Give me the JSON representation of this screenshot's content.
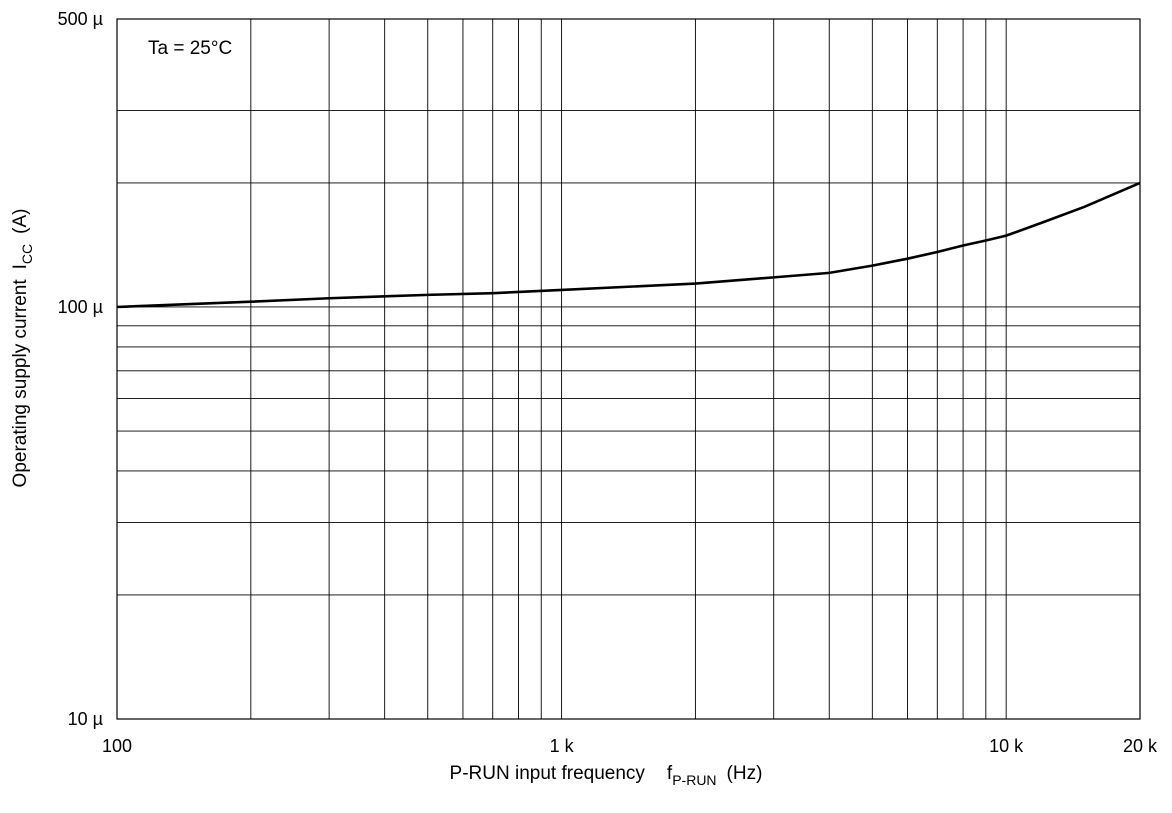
{
  "chart_data": {
    "type": "line",
    "title": "",
    "annotation": "Ta = 25°C",
    "xlabel": {
      "main": "P-RUN input frequency",
      "symbol": "f",
      "subscript": "P-RUN",
      "unit": "(Hz)"
    },
    "ylabel": {
      "main": "Operating supply current",
      "symbol": "I",
      "subscript": "CC",
      "unit": "(A)"
    },
    "x_scale": "log",
    "y_scale": "log",
    "xlim": [
      100,
      20000
    ],
    "ylim": [
      1e-05,
      0.0005
    ],
    "x_ticks": [
      {
        "value": 100,
        "label": "100"
      },
      {
        "value": 1000,
        "label": "1 k"
      },
      {
        "value": 10000,
        "label": "10 k"
      },
      {
        "value": 20000,
        "label": "20 k"
      }
    ],
    "y_ticks": [
      {
        "value": 1e-05,
        "label": "10 µ"
      },
      {
        "value": 0.0001,
        "label": "100 µ"
      },
      {
        "value": 0.0005,
        "label": "500 µ"
      }
    ],
    "grid": true,
    "x_grid_lines": [
      200,
      300,
      400,
      500,
      600,
      700,
      800,
      900,
      1000,
      2000,
      3000,
      4000,
      5000,
      6000,
      7000,
      8000,
      9000,
      10000
    ],
    "y_grid_lines": [
      2e-05,
      3e-05,
      4e-05,
      5e-05,
      6e-05,
      7e-05,
      8e-05,
      9e-05,
      0.0001,
      0.0002,
      0.0003
    ],
    "series": [
      {
        "x": [
          100,
          200,
          300,
          500,
          700,
          1000,
          2000,
          3000,
          4000,
          5000,
          6000,
          7000,
          8000,
          9000,
          10000,
          12000,
          15000,
          20000
        ],
        "y": [
          0.0001,
          0.000103,
          0.000105,
          0.000107,
          0.000108,
          0.00011,
          0.000114,
          0.000118,
          0.000121,
          0.000126,
          0.000131,
          0.000136,
          0.000141,
          0.000145,
          0.000149,
          0.00016,
          0.000175,
          0.0002
        ]
      }
    ]
  }
}
